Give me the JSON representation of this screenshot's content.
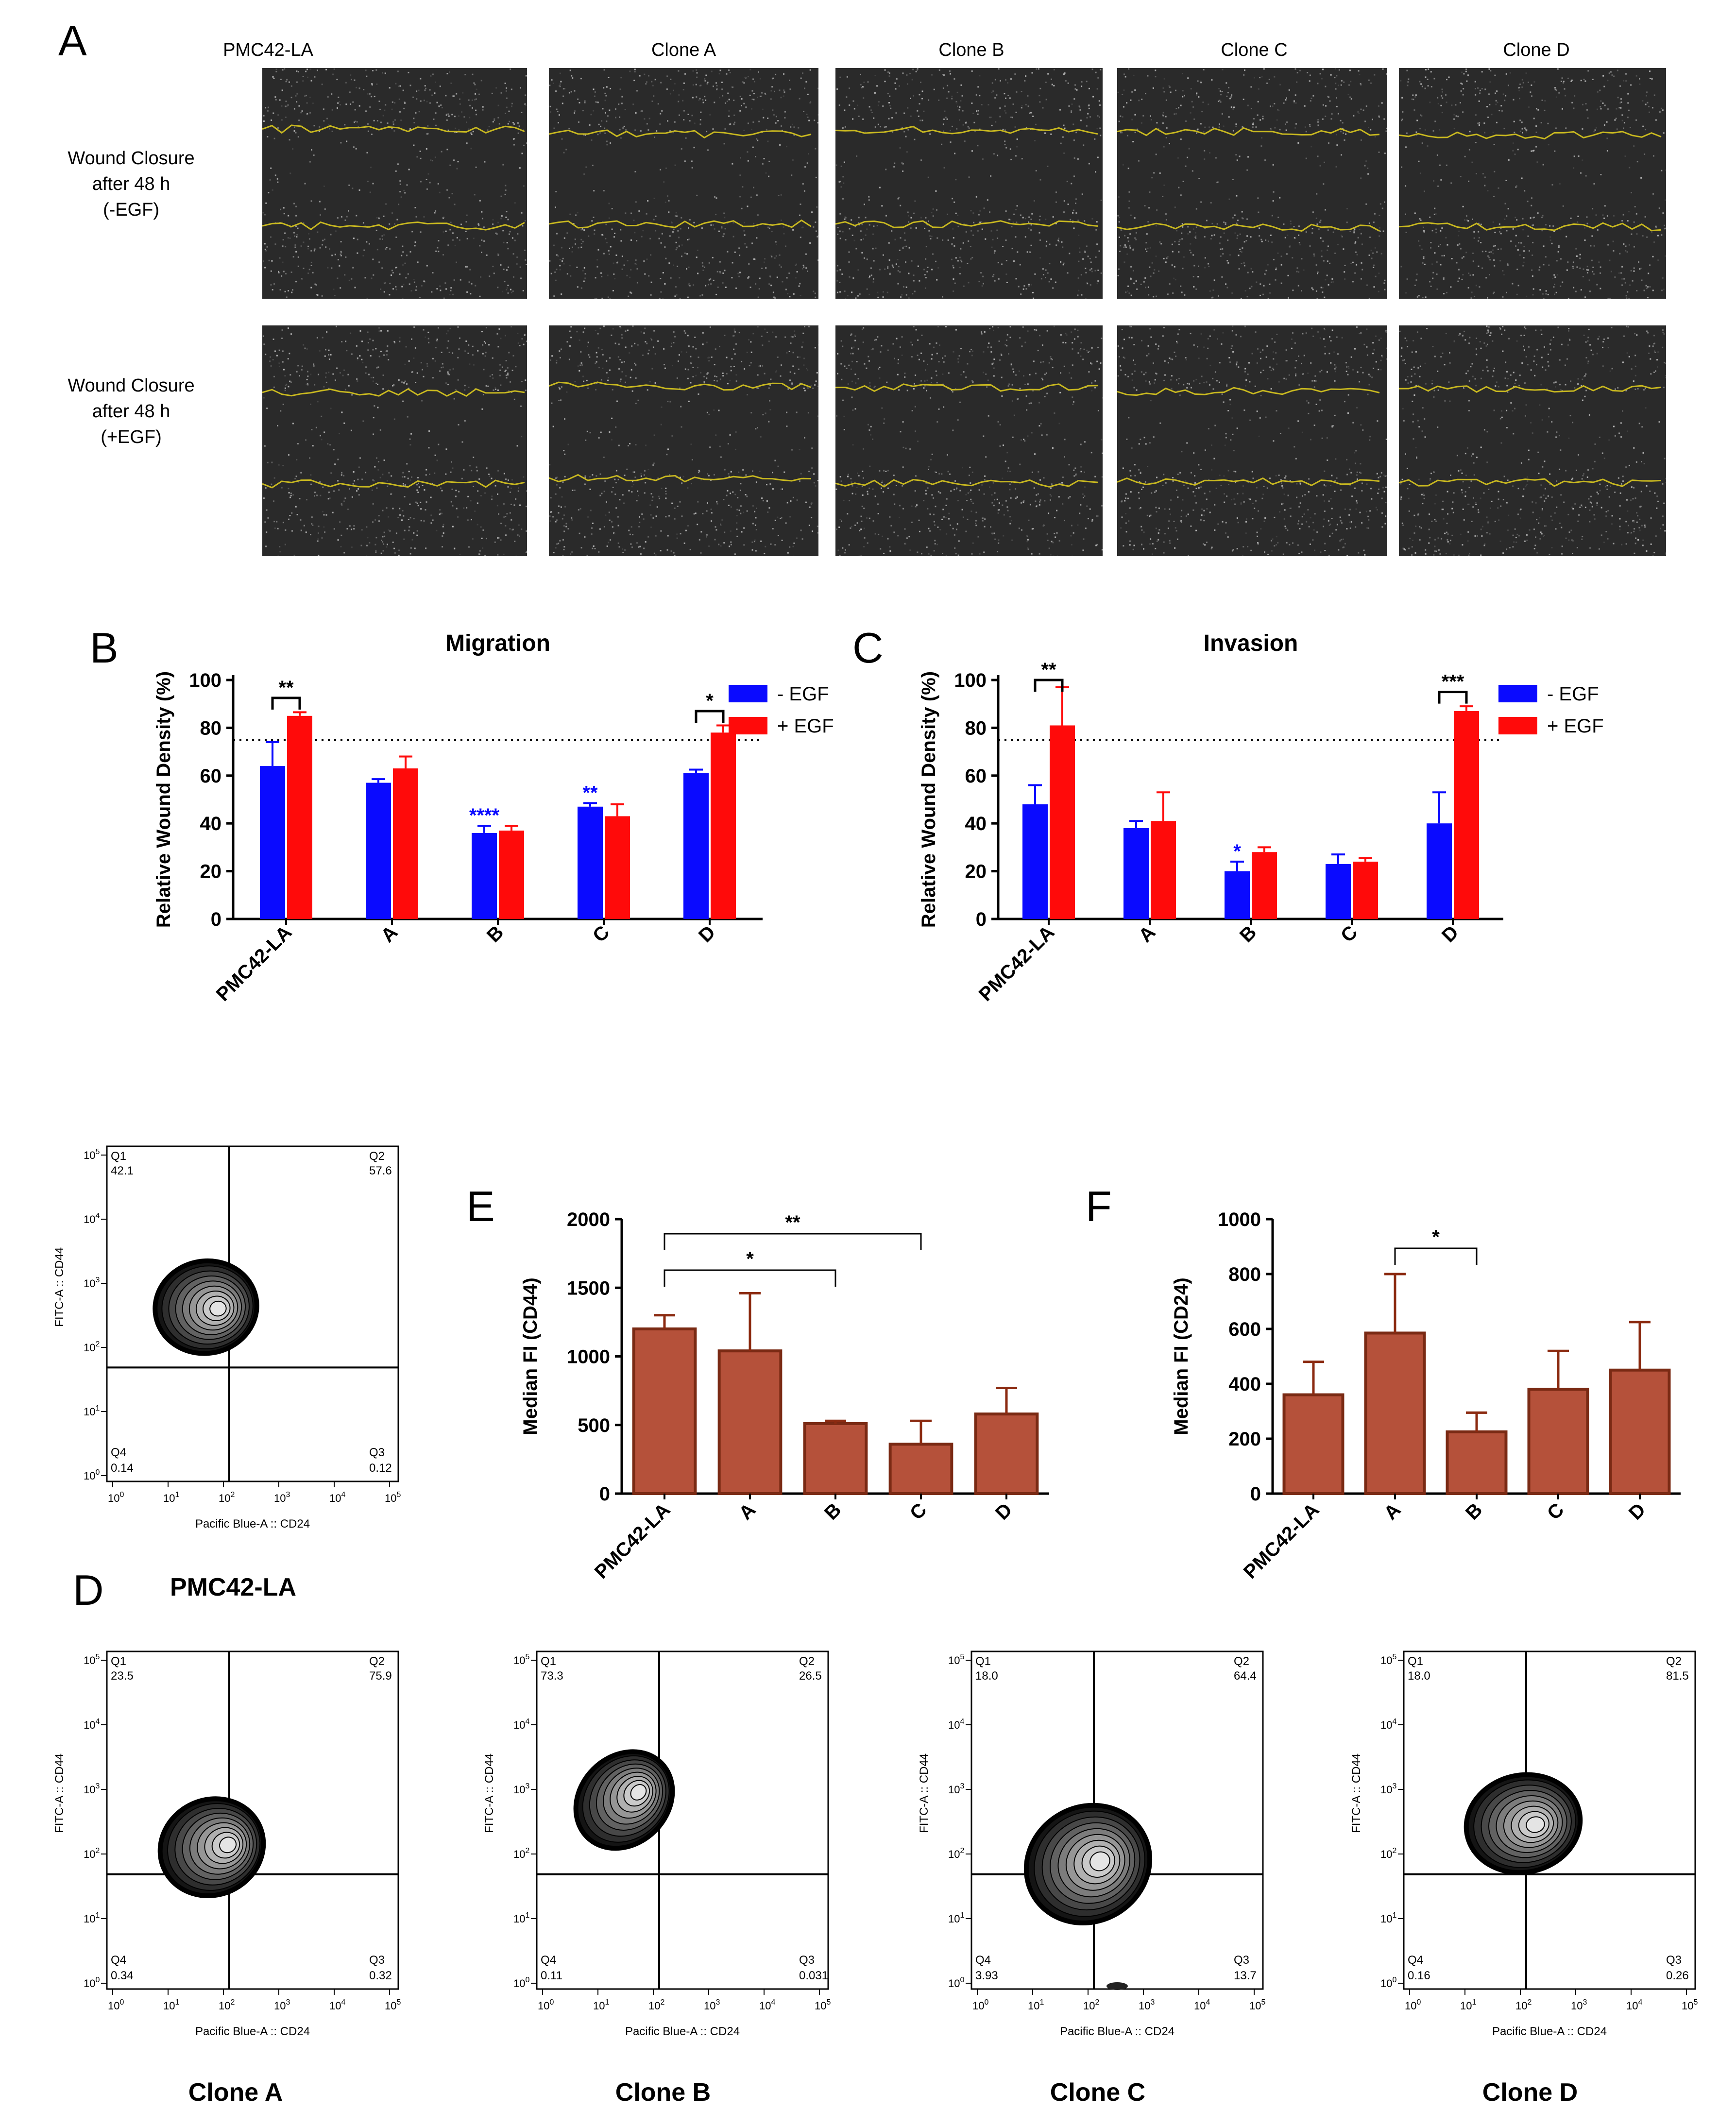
{
  "panels": {
    "A": "A",
    "B": "B",
    "C": "C",
    "D": "D",
    "E": "E",
    "F": "F"
  },
  "panel_a": {
    "columns": [
      "PMC42-LA",
      "Clone A",
      "Clone B",
      "Clone C",
      "Clone D"
    ],
    "rows": [
      {
        "line1": "Wound Closure",
        "line2": "after 48 h",
        "line3": "(-EGF)"
      },
      {
        "line1": "Wound Closure",
        "line2": "after 48 h",
        "line3": "(+EGF)"
      }
    ],
    "line_color": "#c8b820"
  },
  "colors": {
    "minus_egf": "#0a0aff",
    "plus_egf": "#ff0a0a",
    "brown": "#b5513a",
    "brown_edge": "#7a2a14",
    "error": "#8b2a10"
  },
  "chart_data": [
    {
      "id": "B",
      "type": "bar",
      "title": "Migration",
      "ylabel": "Relative Wound Density (%)",
      "categories": [
        "PMC42-LA",
        "A",
        "B",
        "C",
        "D"
      ],
      "series": [
        {
          "name": "- EGF",
          "values": [
            64,
            57,
            36,
            47,
            61
          ],
          "errors": [
            10,
            1.5,
            3,
            1.5,
            1.5
          ]
        },
        {
          "name": "+ EGF",
          "values": [
            85,
            63,
            37,
            43,
            78
          ],
          "errors": [
            1.5,
            5,
            2,
            5,
            3
          ]
        }
      ],
      "ylim": [
        0,
        100
      ],
      "yticks": [
        "0",
        "20",
        "40",
        "60",
        "80",
        "100"
      ],
      "reference_line": 75,
      "minus_sig": [
        "",
        "",
        "****",
        "**",
        ""
      ],
      "brackets": [
        {
          "cat": 0,
          "label": "**"
        },
        {
          "cat": 4,
          "label": "*"
        }
      ],
      "legend": [
        "- EGF",
        "+ EGF"
      ]
    },
    {
      "id": "C",
      "type": "bar",
      "title": "Invasion",
      "ylabel": "Relative Wound Density (%)",
      "categories": [
        "PMC42-LA",
        "A",
        "B",
        "C",
        "D"
      ],
      "series": [
        {
          "name": "- EGF",
          "values": [
            48,
            38,
            20,
            23,
            40
          ],
          "errors": [
            8,
            3,
            4,
            4,
            13
          ]
        },
        {
          "name": "+ EGF",
          "values": [
            81,
            41,
            28,
            24,
            87
          ],
          "errors": [
            16,
            12,
            2,
            1.5,
            2
          ]
        }
      ],
      "ylim": [
        0,
        100
      ],
      "yticks": [
        "0",
        "20",
        "40",
        "60",
        "80",
        "100"
      ],
      "reference_line": 75,
      "minus_sig": [
        "",
        "",
        "*",
        "",
        ""
      ],
      "brackets": [
        {
          "cat": 0,
          "label": "**"
        },
        {
          "cat": 4,
          "label": "***"
        }
      ],
      "legend": [
        "- EGF",
        "+ EGF"
      ]
    },
    {
      "id": "E",
      "type": "bar",
      "ylabel": "Median FI (CD44)",
      "categories": [
        "PMC42-LA",
        "A",
        "B",
        "C",
        "D"
      ],
      "values": [
        1200,
        1040,
        510,
        360,
        580
      ],
      "errors": [
        100,
        420,
        20,
        170,
        190
      ],
      "ylim": [
        0,
        2000
      ],
      "yticks": [
        "0",
        "500",
        "1000",
        "1500",
        "2000"
      ],
      "brackets": [
        {
          "from": 0,
          "to": 2,
          "label": "*"
        },
        {
          "from": 0,
          "to": 3,
          "label": "**"
        }
      ]
    },
    {
      "id": "F",
      "type": "bar",
      "ylabel": "Median FI (CD24)",
      "categories": [
        "PMC42-LA",
        "A",
        "B",
        "C",
        "D"
      ],
      "values": [
        360,
        585,
        225,
        380,
        450
      ],
      "errors": [
        120,
        215,
        70,
        140,
        175
      ],
      "ylim": [
        0,
        1000
      ],
      "yticks": [
        "0",
        "200",
        "400",
        "600",
        "800",
        "1000"
      ],
      "brackets": [
        {
          "from": 1,
          "to": 2,
          "label": "*"
        }
      ]
    }
  ],
  "flow_plots": [
    {
      "caption": "PMC42-LA",
      "q1": "42.1",
      "q2": "57.6",
      "q3": "0.12",
      "q4": "0.14"
    },
    {
      "caption": "Clone A",
      "q1": "23.5",
      "q2": "75.9",
      "q3": "0.32",
      "q4": "0.34"
    },
    {
      "caption": "Clone B",
      "q1": "73.3",
      "q2": "26.5",
      "q3": "0.031",
      "q4": "0.11"
    },
    {
      "caption": "Clone C",
      "q1": "18.0",
      "q2": "64.4",
      "q3": "13.7",
      "q4": "3.93"
    },
    {
      "caption": "Clone D",
      "q1": "18.0",
      "q2": "81.5",
      "q3": "0.26",
      "q4": "0.16"
    }
  ],
  "flow_axes": {
    "xlabel": "Pacific Blue-A :: CD24",
    "ylabel": "FITC-A :: CD44",
    "ticks": [
      [
        "10",
        "0"
      ],
      [
        "10",
        "1"
      ],
      [
        "10",
        "2"
      ],
      [
        "10",
        "3"
      ],
      [
        "10",
        "4"
      ],
      [
        "10",
        "5"
      ]
    ],
    "quadrants": [
      "Q1",
      "Q2",
      "Q3",
      "Q4"
    ]
  }
}
